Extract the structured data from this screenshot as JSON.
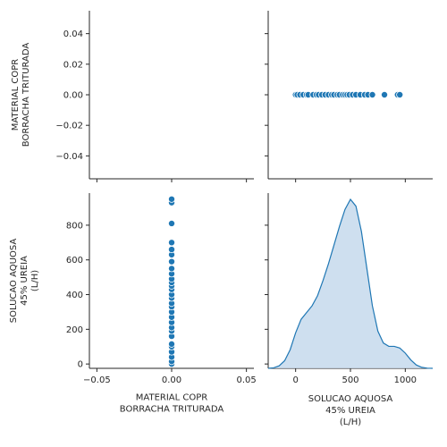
{
  "chart_data": {
    "type": "scatter",
    "layout": "pairplot",
    "variables": [
      [
        "MATERIAL COPR",
        "BORRACHA TRITURADA"
      ],
      [
        "SOLUCAO AQUOSA",
        "45% UREIA",
        "(L/H)"
      ]
    ],
    "color": "#1f77b4",
    "kde_fill": "#c6d9ec",
    "grid": false,
    "panels": {
      "top_left": {
        "type": "empty",
        "ylim": [
          -0.055,
          0.055
        ],
        "yticks": [
          "0.04",
          "0.02",
          "0.00",
          "−0.02",
          "−0.04"
        ],
        "ytick_values": [
          0.04,
          0.02,
          0.0,
          -0.02,
          -0.04
        ]
      },
      "top_right": {
        "type": "scatter",
        "xlim": [
          -250,
          1250
        ],
        "ylim": [
          -0.055,
          0.055
        ],
        "points_x": [
          0,
          15,
          40,
          70,
          100,
          115,
          160,
          190,
          210,
          240,
          270,
          300,
          330,
          350,
          380,
          400,
          430,
          450,
          470,
          490,
          520,
          550,
          590,
          630,
          660,
          700,
          810,
          930,
          950
        ],
        "y": 0
      },
      "bottom_left": {
        "type": "scatter",
        "xlim": [
          -0.055,
          0.055
        ],
        "ylim": [
          -25,
          985
        ],
        "xticks": [
          "−0.05",
          "0.00",
          "0.05"
        ],
        "xtick_values": [
          -0.05,
          0.0,
          0.05
        ],
        "yticks": [
          "0",
          "200",
          "400",
          "600",
          "800"
        ],
        "ytick_values": [
          0,
          200,
          400,
          600,
          800
        ],
        "x": 0,
        "points_y": [
          0,
          15,
          40,
          70,
          100,
          115,
          160,
          190,
          210,
          240,
          270,
          300,
          330,
          350,
          380,
          400,
          430,
          450,
          470,
          490,
          520,
          550,
          590,
          630,
          660,
          700,
          810,
          930,
          950
        ]
      },
      "bottom_right": {
        "type": "kde",
        "xlim": [
          -250,
          1250
        ],
        "xticks": [
          "0",
          "500",
          "1000"
        ],
        "xtick_values": [
          0,
          500,
          1000
        ],
        "curve_x": [
          -250,
          -200,
          -150,
          -100,
          -50,
          0,
          50,
          100,
          150,
          200,
          250,
          300,
          350,
          400,
          450,
          500,
          550,
          600,
          650,
          700,
          750,
          800,
          850,
          900,
          950,
          1000,
          1050,
          1100,
          1150,
          1200,
          1250
        ],
        "curve_density": [
          0.0,
          0.003,
          0.015,
          0.045,
          0.11,
          0.21,
          0.29,
          0.33,
          0.37,
          0.43,
          0.52,
          0.62,
          0.73,
          0.84,
          0.94,
          1.0,
          0.96,
          0.81,
          0.59,
          0.37,
          0.22,
          0.15,
          0.13,
          0.13,
          0.12,
          0.09,
          0.05,
          0.02,
          0.006,
          0.001,
          0.0
        ]
      }
    }
  }
}
